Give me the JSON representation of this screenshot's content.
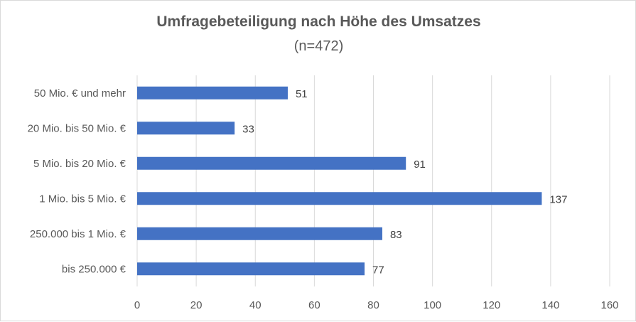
{
  "chart_data": {
    "type": "bar",
    "orientation": "horizontal",
    "title": "Umfragebeteiligung nach Höhe des Umsatzes",
    "subtitle": "(n=472)",
    "categories": [
      "50 Mio. € und mehr",
      "20 Mio. bis 50 Mio. €",
      "5 Mio. bis 20 Mio. €",
      "1 Mio. bis 5 Mio. €",
      "250.000 bis 1 Mio. €",
      "bis 250.000 €"
    ],
    "values": [
      51,
      33,
      91,
      137,
      83,
      77
    ],
    "xlim": [
      0,
      160
    ],
    "xticks": [
      0,
      20,
      40,
      60,
      80,
      100,
      120,
      140,
      160
    ],
    "grid": "vertical",
    "bar_color": "#4472c4",
    "data_labels": true
  }
}
